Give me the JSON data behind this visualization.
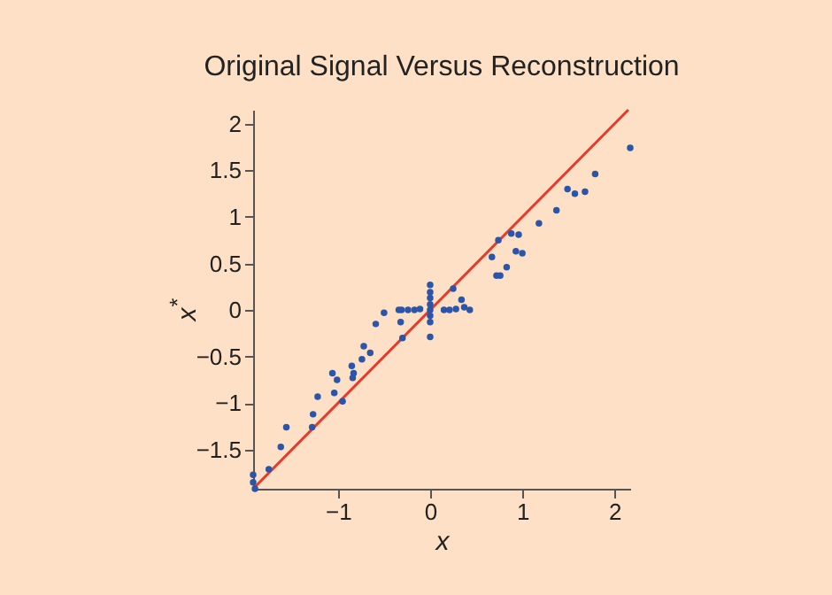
{
  "chart_data": {
    "type": "scatter",
    "title": "Original Signal Versus Reconstruction",
    "xlabel": "x",
    "ylabel": "x$^{*}$",
    "xlim": [
      -1.92,
      2.17
    ],
    "ylim": [
      -1.92,
      2.15
    ],
    "xticks": [
      -1,
      0,
      1,
      2
    ],
    "yticks": [
      -1.5,
      -1,
      -0.5,
      0,
      0.5,
      1,
      1.5,
      2
    ],
    "grid": false,
    "series": [
      {
        "color": "#2a55a8",
        "marker": "circle",
        "x": [
          -1.92,
          -1.92,
          -1.9,
          -1.75,
          -1.62,
          -1.56,
          -1.28,
          -1.27,
          -1.22,
          -1.04,
          -0.95,
          -1.06,
          -1.01,
          -0.85,
          -0.83,
          -0.84,
          -0.74,
          -0.72,
          -0.65,
          -0.59,
          -0.5,
          -0.31,
          -0.32,
          -0.3,
          -0.34,
          -0.24,
          -0.17,
          -0.11,
          0,
          0,
          0,
          0,
          0,
          0,
          0,
          0,
          0.15,
          0.21,
          0.28,
          0.34,
          0.37,
          0.43,
          0.25,
          0.67,
          0.72,
          0.76,
          0.83,
          0.74,
          0.88,
          0.96,
          0.93,
          1.0,
          1.18,
          1.37,
          1.49,
          1.57,
          1.68,
          1.79,
          2.17
        ],
        "values": [
          -1.77,
          -1.85,
          -1.92,
          -1.71,
          -1.47,
          -1.26,
          -1.26,
          -1.12,
          -0.93,
          -0.89,
          -0.98,
          -0.68,
          -0.75,
          -0.6,
          -0.68,
          -0.73,
          -0.53,
          -0.39,
          -0.46,
          -0.15,
          -0.03,
          0,
          -0.13,
          -0.3,
          0,
          0,
          0,
          0.01,
          0.27,
          0.19,
          0.13,
          0.06,
          0,
          -0.06,
          -0.13,
          -0.29,
          0,
          0,
          0.01,
          0.11,
          0.03,
          0,
          0.23,
          0.57,
          0.37,
          0.37,
          0.46,
          0.75,
          0.82,
          0.81,
          0.63,
          0.61,
          0.93,
          1.07,
          1.3,
          1.25,
          1.27,
          1.46,
          1.74
        ]
      },
      {
        "type": "line",
        "color": "#e8392a",
        "line_style": "solid",
        "x": [
          -1.92,
          2.15
        ],
        "values": [
          -1.92,
          2.15
        ]
      }
    ]
  }
}
